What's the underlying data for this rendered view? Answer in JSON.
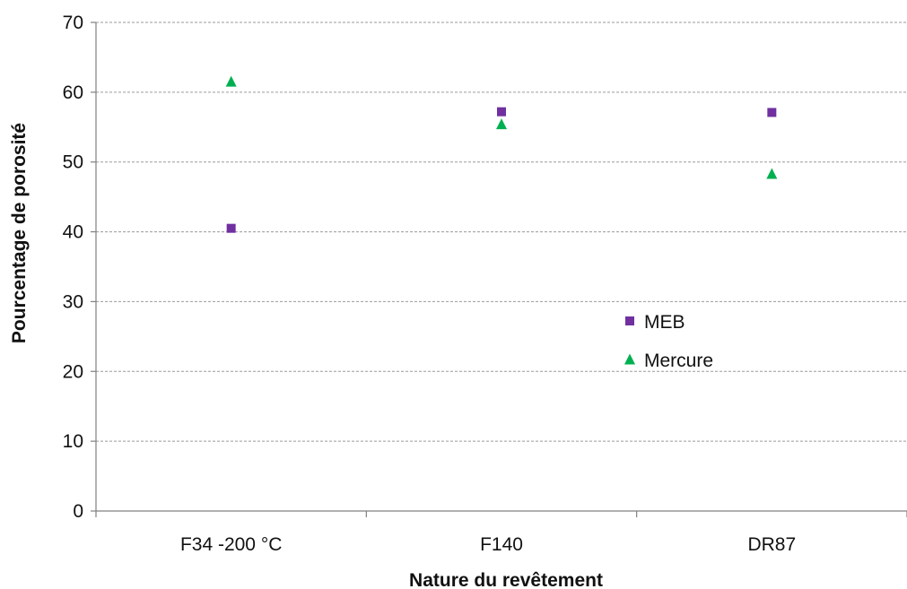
{
  "chart_data": {
    "type": "scatter",
    "title": "",
    "xlabel": "Nature du revêtement",
    "ylabel": "Pourcentage de porosité",
    "categories": [
      "F34 -200 °C",
      "F140",
      "DR87"
    ],
    "ylim": [
      0,
      70
    ],
    "yticks": [
      0,
      10,
      20,
      30,
      40,
      50,
      60,
      70
    ],
    "grid": "horizontal dashed",
    "legend_position": "center-right",
    "series": [
      {
        "name": "MEB",
        "marker": "square",
        "color": "#7030A0",
        "values": [
          40.5,
          57.2,
          57.1
        ]
      },
      {
        "name": "Mercure",
        "marker": "triangle",
        "color": "#00B050",
        "values": [
          61.5,
          55.4,
          48.3
        ]
      }
    ]
  }
}
